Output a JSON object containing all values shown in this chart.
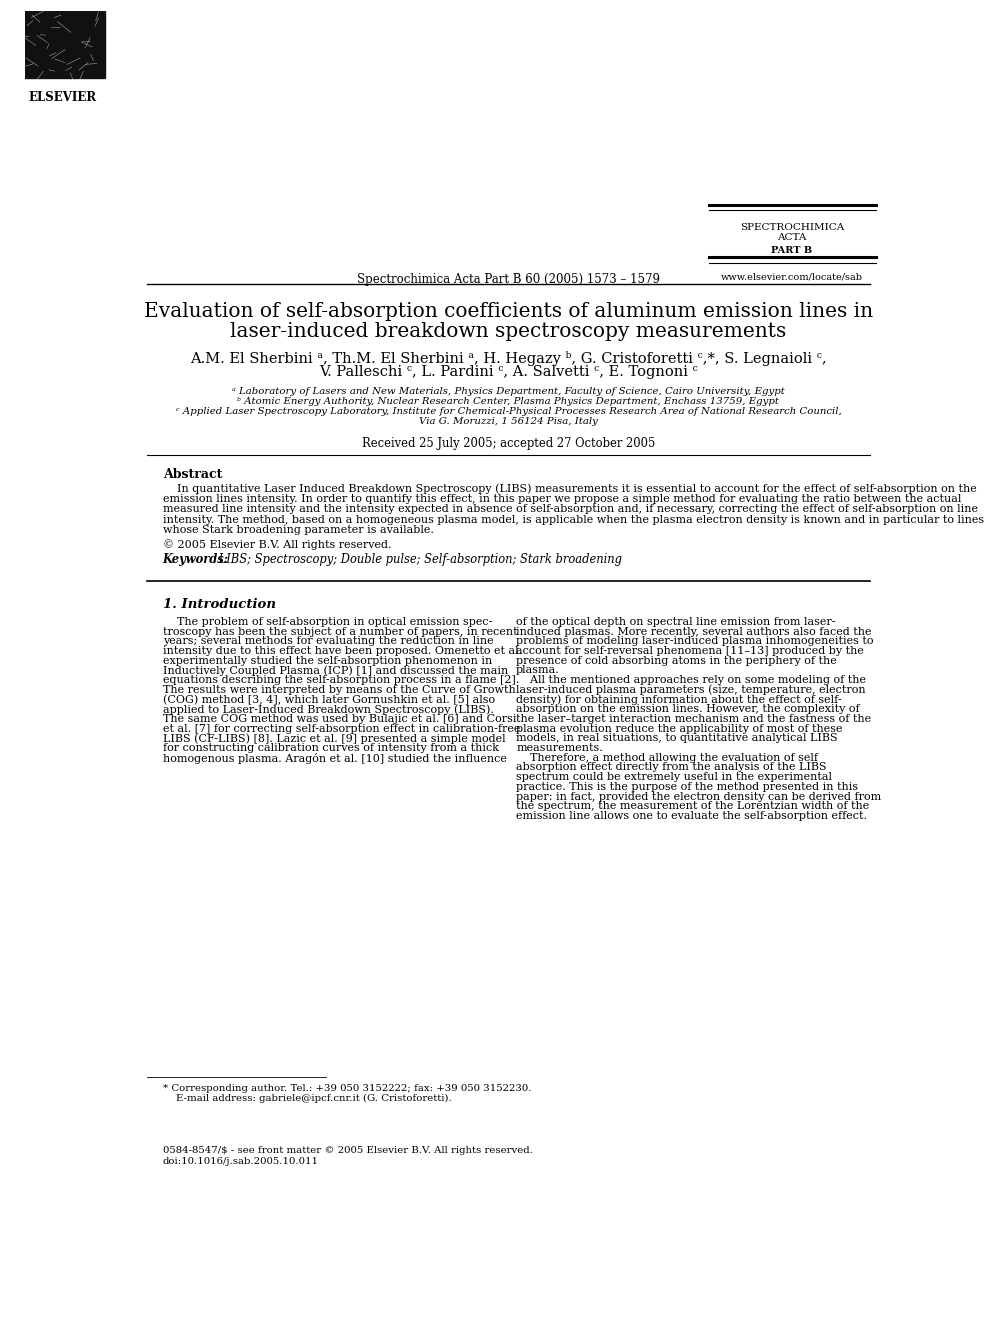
{
  "bg_color": "#ffffff",
  "journal_name_line1": "SPECTROCHIMICA",
  "journal_name_line2": "ACTA",
  "journal_name_line3": "PART B",
  "journal_info": "Spectrochimica Acta Part B 60 (2005) 1573 – 1579",
  "journal_url": "www.elsevier.com/locate/sab",
  "elsevier_text": "ELSEVIER",
  "paper_title_line1": "Evaluation of self-absorption coefficients of aluminum emission lines in",
  "paper_title_line2": "laser-induced breakdown spectroscopy measurements",
  "authors_line1": "A.M. El Sherbini ᵃ, Th.M. El Sherbini ᵃ, H. Hegazy ᵇ, G. Cristoforetti ᶜ,*, S. Legnaioli ᶜ,",
  "authors_line2": "V. Palleschi ᶜ, L. Pardini ᶜ, A. Salvetti ᶜ, E. Tognoni ᶜ",
  "affil_a": "ᵃ Laboratory of Lasers and New Materials, Physics Department, Faculty of Science, Cairo University, Egypt",
  "affil_b": "ᵇ Atomic Energy Authority, Nuclear Research Center, Plasma Physics Department, Enchass 13759, Egypt",
  "affil_c_line1": "ᶜ Applied Laser Spectroscopy Laboratory, Institute for Chemical-Physical Processes Research Area of National Research Council,",
  "affil_c_line2": "Via G. Moruzzi, 1 56124 Pisa, Italy",
  "received": "Received 25 July 2005; accepted 27 October 2005",
  "abstract_title": "Abstract",
  "copyright": "© 2005 Elsevier B.V. All rights reserved.",
  "keywords_label": "Keywords:",
  "keywords_text": " LIBS; Spectroscopy; Double pulse; Self-absorption; Stark broadening",
  "intro_heading": "1. Introduction",
  "footnote_star": "* Corresponding author. Tel.: +39 050 3152222; fax: +39 050 3152230.",
  "footnote_email": "    E-mail address: gabriele@ipcf.cnr.it (G. Cristoforetti).",
  "footer_issn": "0584-8547/$ - see front matter © 2005 Elsevier B.V. All rights reserved.",
  "footer_doi": "doi:10.1016/j.sab.2005.10.011",
  "abstract_lines": [
    "    In quantitative Laser Induced Breakdown Spectroscopy (LIBS) measurements it is essential to account for the effect of self-absorption on the",
    "emission lines intensity. In order to quantify this effect, in this paper we propose a simple method for evaluating the ratio between the actual",
    "measured line intensity and the intensity expected in absence of self-absorption and, if necessary, correcting the effect of self-absorption on line",
    "intensity. The method, based on a homogeneous plasma model, is applicable when the plasma electron density is known and in particular to lines",
    "whose Stark broadening parameter is available."
  ],
  "col1_lines": [
    "    The problem of self-absorption in optical emission spec-",
    "troscopy has been the subject of a number of papers, in recent",
    "years; several methods for evaluating the reduction in line",
    "intensity due to this effect have been proposed. Omenetto et al.",
    "experimentally studied the self-absorption phenomenon in",
    "Inductively Coupled Plasma (ICP) [1] and discussed the main",
    "equations describing the self-absorption process in a flame [2].",
    "The results were interpreted by means of the Curve of Growth",
    "(COG) method [3, 4], which later Gornushkin et al. [5] also",
    "applied to Laser-Induced Breakdown Spectroscopy (LIBS).",
    "The same COG method was used by Bulajic et al. [6] and Corsi",
    "et al. [7] for correcting self-absorption effect in calibration-free",
    "LIBS (CF-LIBS) [8]. Lazic et al. [9] presented a simple model",
    "for constructing calibration curves of intensity from a thick",
    "homogenous plasma. Aragón et al. [10] studied the influence"
  ],
  "col2_lines": [
    "of the optical depth on spectral line emission from laser-",
    "induced plasmas. More recently, several authors also faced the",
    "problems of modeling laser-induced plasma inhomogeneities to",
    "account for self-reversal phenomena [11–13] produced by the",
    "presence of cold absorbing atoms in the periphery of the",
    "plasma.",
    "    All the mentioned approaches rely on some modeling of the",
    "laser-induced plasma parameters (size, temperature, electron",
    "density) for obtaining information about the effect of self-",
    "absorption on the emission lines. However, the complexity of",
    "the laser–target interaction mechanism and the fastness of the",
    "plasma evolution reduce the applicability of most of these",
    "models, in real situations, to quantitative analytical LIBS",
    "measurements.",
    "    Therefore, a method allowing the evaluation of self",
    "absorption effect directly from the analysis of the LIBS",
    "spectrum could be extremely useful in the experimental",
    "practice. This is the purpose of the method presented in this",
    "paper: in fact, provided the electron density can be derived from",
    "the spectrum, the measurement of the Lorentzian width of the",
    "emission line allows one to evaluate the self-absorption effect."
  ]
}
